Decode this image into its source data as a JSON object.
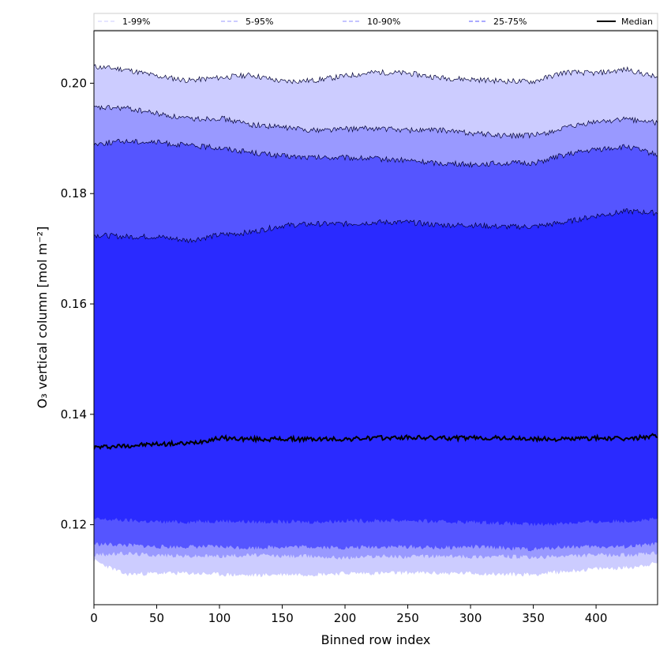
{
  "chart_data": {
    "type": "area",
    "xlabel": "Binned row index",
    "ylabel": "O₃ vertical column [mol m⁻²]",
    "xlim": [
      0,
      449
    ],
    "ylim": [
      0.1055,
      0.2095
    ],
    "xticks": [
      0,
      50,
      100,
      150,
      200,
      250,
      300,
      350,
      400
    ],
    "yticks": [
      0.12,
      0.14,
      0.16,
      0.18,
      0.2
    ],
    "ytick_labels": [
      "0.12",
      "0.14",
      "0.16",
      "0.18",
      "0.20"
    ],
    "legend_position": "top",
    "x": [
      0,
      25,
      50,
      75,
      100,
      125,
      150,
      175,
      200,
      225,
      250,
      275,
      300,
      325,
      350,
      375,
      400,
      425,
      449
    ],
    "bands": [
      {
        "name": "1-99%",
        "color": "#ccccff",
        "line_color": "#ccccff",
        "lower": [
          0.1135,
          0.111,
          0.1112,
          0.1112,
          0.111,
          0.1108,
          0.111,
          0.111,
          0.1112,
          0.1112,
          0.1113,
          0.1112,
          0.1112,
          0.111,
          0.111,
          0.1115,
          0.112,
          0.1122,
          0.113
        ],
        "upper": [
          0.203,
          0.2025,
          0.2013,
          0.2005,
          0.201,
          0.2015,
          0.2003,
          0.2005,
          0.2013,
          0.202,
          0.2018,
          0.201,
          0.2007,
          0.2004,
          0.2003,
          0.202,
          0.2018,
          0.2025,
          0.201
        ]
      },
      {
        "name": "5-95%",
        "color": "#9999ff",
        "line_color": "#9999ff",
        "lower": [
          0.1145,
          0.1148,
          0.1145,
          0.1143,
          0.1143,
          0.1145,
          0.1143,
          0.1143,
          0.114,
          0.1143,
          0.1142,
          0.1143,
          0.1142,
          0.1143,
          0.114,
          0.1143,
          0.1145,
          0.1145,
          0.1148
        ],
        "upper": [
          0.1955,
          0.1955,
          0.1945,
          0.1935,
          0.1937,
          0.1925,
          0.192,
          0.1915,
          0.1917,
          0.1918,
          0.1915,
          0.1915,
          0.191,
          0.1905,
          0.1905,
          0.1918,
          0.193,
          0.1935,
          0.1928
        ]
      },
      {
        "name": "10-90%",
        "color": "#5555ff",
        "line_color": "#8888ff",
        "lower": [
          0.1165,
          0.1163,
          0.116,
          0.116,
          0.116,
          0.1158,
          0.116,
          0.116,
          0.1158,
          0.116,
          0.116,
          0.1158,
          0.116,
          0.1158,
          0.1155,
          0.116,
          0.116,
          0.116,
          0.1165
        ],
        "upper": [
          0.189,
          0.1895,
          0.1893,
          0.1887,
          0.1883,
          0.1875,
          0.1868,
          0.1865,
          0.1865,
          0.1863,
          0.186,
          0.1855,
          0.1853,
          0.1855,
          0.1855,
          0.187,
          0.188,
          0.1885,
          0.187
        ]
      },
      {
        "name": "25-75%",
        "color": "#2a2aff",
        "line_color": "#5555ff",
        "lower": [
          0.121,
          0.1208,
          0.1205,
          0.1205,
          0.1207,
          0.1205,
          0.1205,
          0.1205,
          0.1207,
          0.1207,
          0.1208,
          0.1205,
          0.1205,
          0.1203,
          0.12,
          0.1203,
          0.1205,
          0.1207,
          0.121
        ],
        "upper": [
          0.1725,
          0.1722,
          0.1722,
          0.1715,
          0.1725,
          0.173,
          0.1742,
          0.1745,
          0.1745,
          0.1748,
          0.1748,
          0.1743,
          0.1743,
          0.174,
          0.174,
          0.1748,
          0.176,
          0.1768,
          0.1765
        ]
      }
    ],
    "median": {
      "name": "Median",
      "color": "#000000",
      "values": [
        0.134,
        0.1343,
        0.1346,
        0.1347,
        0.1357,
        0.1355,
        0.1355,
        0.1355,
        0.1355,
        0.1357,
        0.1358,
        0.1357,
        0.1357,
        0.1357,
        0.1355,
        0.1355,
        0.1357,
        0.1355,
        0.1362
      ]
    }
  }
}
